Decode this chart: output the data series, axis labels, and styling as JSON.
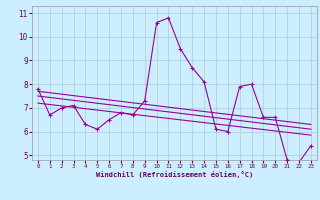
{
  "title": "",
  "xlabel": "Windchill (Refroidissement éolien,°C)",
  "bg_color": "#cceeff",
  "grid_color": "#aaccdd",
  "line_color": "#990099",
  "xlim": [
    -0.5,
    23.5
  ],
  "ylim": [
    4.8,
    11.3
  ],
  "yticks": [
    5,
    6,
    7,
    8,
    9,
    10,
    11
  ],
  "xticks": [
    0,
    1,
    2,
    3,
    4,
    5,
    6,
    7,
    8,
    9,
    10,
    11,
    12,
    13,
    14,
    15,
    16,
    17,
    18,
    19,
    20,
    21,
    22,
    23
  ],
  "series1_x": [
    0,
    1,
    2,
    3,
    4,
    5,
    6,
    7,
    8,
    9,
    10,
    11,
    12,
    13,
    14,
    15,
    16,
    17,
    18,
    19,
    20,
    21,
    22,
    23
  ],
  "series1_y": [
    7.8,
    6.7,
    7.0,
    7.1,
    6.3,
    6.1,
    6.5,
    6.8,
    6.7,
    7.3,
    10.6,
    10.8,
    9.5,
    8.7,
    8.1,
    6.1,
    6.0,
    7.9,
    8.0,
    6.6,
    6.6,
    4.8,
    4.7,
    5.4
  ],
  "series2_x": [
    0,
    23
  ],
  "series2_y": [
    7.7,
    6.3
  ],
  "series3_x": [
    0,
    23
  ],
  "series3_y": [
    7.5,
    6.1
  ],
  "series4_x": [
    0,
    23
  ],
  "series4_y": [
    7.2,
    5.85
  ]
}
